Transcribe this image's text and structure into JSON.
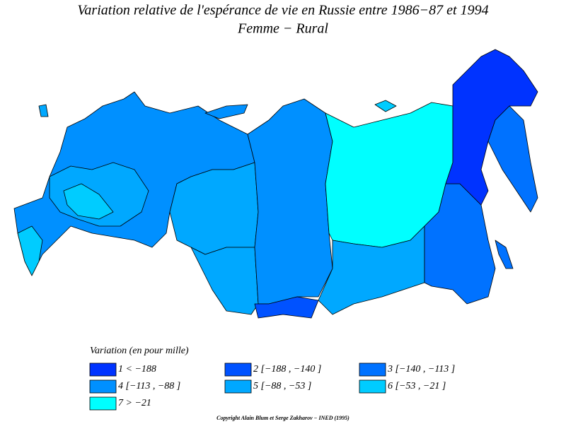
{
  "title": [
    "Variation relative de l'espérance de vie en Russie entre 1986−87 et 1994",
    "Femme − Rural"
  ],
  "legend": {
    "title": "Variation (en pour mille)",
    "items": [
      {
        "label": "1  <  −188",
        "color": "#0033ff"
      },
      {
        "label": "2 [−188 ,  −140 ]",
        "color": "#0052ff"
      },
      {
        "label": "3 [−140 ,  −113 ]",
        "color": "#0072ff"
      },
      {
        "label": "4 [−113 ,  −88 ]",
        "color": "#0090ff"
      },
      {
        "label": "5 [−88 ,  −53 ]",
        "color": "#00a8ff"
      },
      {
        "label": "6 [−53 ,  −21 ]",
        "color": "#00ccff"
      },
      {
        "label": "7  >  −21",
        "color": "#00ffff"
      }
    ]
  },
  "copyright": "Copyright Alain Blum et Serge Zakharov  −  INED (1995)"
}
